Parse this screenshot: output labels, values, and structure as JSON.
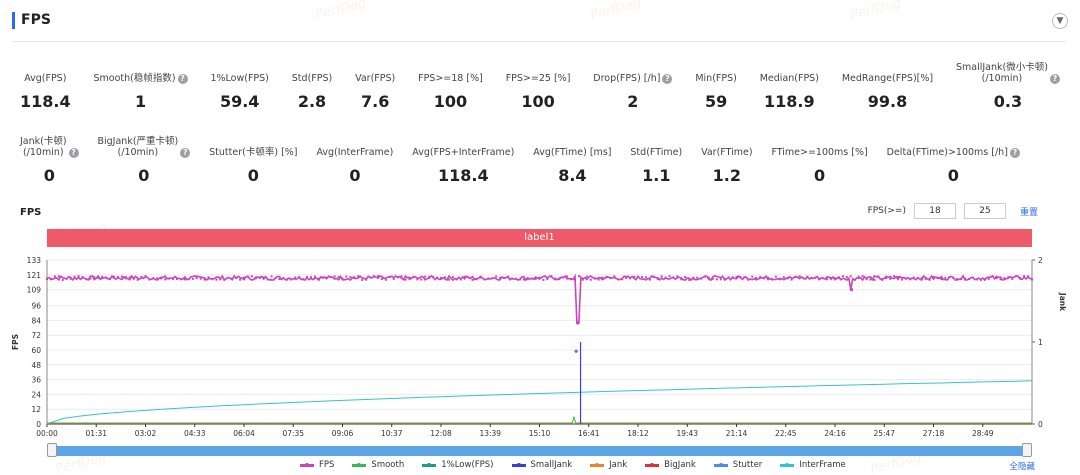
{
  "header": {
    "title": "FPS",
    "collapse_icon": "chevron-down-icon"
  },
  "watermark": "PerfDog",
  "stats_row1": [
    {
      "label": "Avg(FPS)",
      "value": "118.4",
      "help": false
    },
    {
      "label": "Smooth(稳帧指数)",
      "value": "1",
      "help": true
    },
    {
      "label": "1%Low(FPS)",
      "value": "59.4",
      "help": false
    },
    {
      "label": "Std(FPS)",
      "value": "2.8",
      "help": false
    },
    {
      "label": "Var(FPS)",
      "value": "7.6",
      "help": false
    },
    {
      "label": "FPS>=18 [%]",
      "value": "100",
      "help": false
    },
    {
      "label": "FPS>=25 [%]",
      "value": "100",
      "help": false
    },
    {
      "label": "Drop(FPS) [/h]",
      "value": "2",
      "help": true
    },
    {
      "label": "Min(FPS)",
      "value": "59",
      "help": false
    },
    {
      "label": "Median(FPS)",
      "value": "118.9",
      "help": false
    },
    {
      "label": "MedRange(FPS)[%]",
      "value": "99.8",
      "help": false
    },
    {
      "label": "SmallJank(微小卡顿)\n(/10min)",
      "value": "0.3",
      "help": true
    }
  ],
  "stats_row2": [
    {
      "label": "Jank(卡顿)\n(/10min)",
      "value": "0",
      "help": true
    },
    {
      "label": "BigJank(严重卡顿)\n(/10min)",
      "value": "0",
      "help": true
    },
    {
      "label": "Stutter(卡顿率) [%]",
      "value": "0",
      "help": false
    },
    {
      "label": "Avg(InterFrame)",
      "value": "0",
      "help": false
    },
    {
      "label": "Avg(FPS+InterFrame)",
      "value": "118.4",
      "help": false
    },
    {
      "label": "Avg(FTime) [ms]",
      "value": "8.4",
      "help": false
    },
    {
      "label": "Std(FTime)",
      "value": "1.1",
      "help": false
    },
    {
      "label": "Var(FTime)",
      "value": "1.2",
      "help": false
    },
    {
      "label": "FTime>=100ms [%]",
      "value": "0",
      "help": false
    },
    {
      "label": "Delta(FTime)>100ms [/h]",
      "value": "0",
      "help": true
    }
  ],
  "chart": {
    "title": "FPS",
    "filter_label": "FPS(>=)",
    "filter_values": [
      "18",
      "25"
    ],
    "reset_label": "重置",
    "band_label": "label1",
    "hide_all_label": "全隐藏"
  },
  "chart_data": {
    "type": "line",
    "ylabel": "FPS",
    "y2label": "Jank",
    "y_ticks": [
      "0",
      "12",
      "24",
      "36",
      "48",
      "60",
      "72",
      "84",
      "96",
      "109",
      "121",
      "133"
    ],
    "ylim": [
      0,
      133
    ],
    "y2_ticks": [
      "0",
      "1",
      "2"
    ],
    "y2lim": [
      0,
      2
    ],
    "x_ticks": [
      "00:00",
      "01:31",
      "03:02",
      "04:33",
      "06:04",
      "07:35",
      "09:06",
      "10:37",
      "12:08",
      "13:39",
      "15:10",
      "16:41",
      "18:12",
      "19:43",
      "21:14",
      "22:45",
      "24:16",
      "25:47",
      "27:18",
      "28:49"
    ],
    "x_range_seconds": [
      0,
      1800
    ],
    "series": [
      {
        "name": "FPS",
        "color": "#cc44bb",
        "baseline": 118.4,
        "dips": [
          {
            "t": 967,
            "value": 59
          },
          {
            "t": 970,
            "value": 82
          },
          {
            "t": 1470,
            "value": 109
          }
        ]
      },
      {
        "name": "Smooth",
        "color": "#3bb55a",
        "values_note": "near zero",
        "spike": {
          "t": 963,
          "value": 6
        }
      },
      {
        "name": "1%Low(FPS)",
        "color": "#1a9e86"
      },
      {
        "name": "SmallJank",
        "color": "#3b3fd8",
        "spike": {
          "t": 975,
          "jank": 1
        }
      },
      {
        "name": "Jank",
        "color": "#f0822e"
      },
      {
        "name": "BigJank",
        "color": "#e0323a"
      },
      {
        "name": "Stutter",
        "color": "#4a90e2"
      },
      {
        "name": "InterFrame",
        "color": "#33c4cf",
        "start": 0,
        "end": 35
      }
    ]
  }
}
